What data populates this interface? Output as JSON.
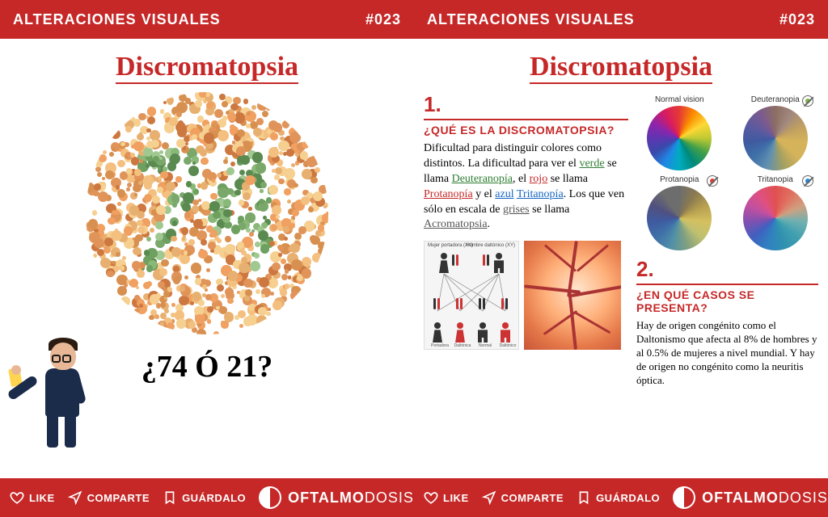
{
  "header": {
    "title": "ALTERACIONES VISUALES",
    "num": "#023"
  },
  "title": "Discromatopsia",
  "question": "¿74 Ó 21?",
  "footer": {
    "like": "LIKE",
    "share": "COMPARTE",
    "save": "GUÁRDALO",
    "brand_a": "OFTALMO",
    "brand_b": "DOSIS"
  },
  "section1": {
    "num": "1.",
    "heading": "¿QUÉ ES LA DISCROMATOPSIA?",
    "text_parts": {
      "p1": "Dificultad para distinguir colores como distintos. La dificultad para ver el ",
      "verde": "verde",
      "p2": " se llama ",
      "deut": "Deuteranopía",
      "p3": ", el ",
      "rojo": "rojo",
      "p4": " se llama ",
      "prot": "Protanopía",
      "p5": " y el ",
      "azul": "azul",
      "trit": "Tritanopía",
      "p6": ". Los que ven sólo en escala de ",
      "grises": "grises",
      "p7": " se llama ",
      "acro": "Acromatopsia",
      "p8": "."
    }
  },
  "wheels": [
    {
      "label": "Normal vision",
      "badge": false,
      "gradient": "conic-gradient(#e53935,#fb8c00,#fdd835,#c0ca33,#43a047,#00897b,#00acc1,#1e88e5,#3949ab,#5e35b1,#8e24aa,#d81b60,#e53935)"
    },
    {
      "label": "Deuteranopia",
      "badge": true,
      "badgeColor": "#7cb342",
      "gradient": "conic-gradient(#8d6e63,#a1887f,#c0a060,#d4b35a,#d4b35a,#a4a060,#6090b0,#3f70a8,#3f5aa0,#5a5aa0,#7a5a90,#8d6e63)"
    },
    {
      "label": "Protanopia",
      "badge": true,
      "badgeColor": "#e53935",
      "gradient": "conic-gradient(#6d6d6d,#8a7a50,#b8a050,#d4c060,#c0c070,#80a080,#5090a8,#3f70a8,#3f5aa0,#505080,#6d6d6d,#6d6d6d)"
    },
    {
      "label": "Tritanopia",
      "badge": true,
      "badgeColor": "#1e88e5",
      "gradient": "conic-gradient(#e05050,#e07060,#d0a080,#70b0b0,#40a0b0,#3090b0,#3080c0,#4060c0,#8050b0,#c050a0,#e05080,#e05050)"
    }
  ],
  "section2": {
    "num": "2.",
    "heading": "¿EN QUÉ CASOS SE PRESENTA?",
    "text": "Hay de origen congénito como el Daltonismo que afecta al 8% de hombres y al 0.5% de mujeres a nivel mundial. Y hay de origen no congénito como la neuritis óptica."
  },
  "ishihara_palette": {
    "bg": [
      "#f0a060",
      "#e8b070",
      "#d89050",
      "#f4c080",
      "#e0945a",
      "#cc7840",
      "#f6d090"
    ],
    "fg": [
      "#6ea060",
      "#8ab878",
      "#5a8a50",
      "#a0c890",
      "#7aa86a"
    ]
  },
  "gen_labels": {
    "top_l": "Mujer portadora (XX)",
    "top_r": "Hombre daltónico (XY)"
  }
}
